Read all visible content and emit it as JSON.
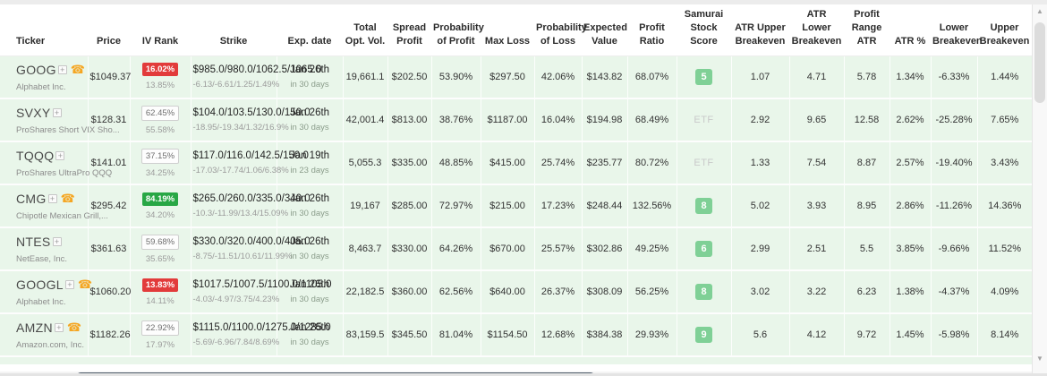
{
  "columns": [
    {
      "key": "ticker",
      "label": "Ticker"
    },
    {
      "key": "price",
      "label": "Price"
    },
    {
      "key": "iv-rank",
      "label": "IV Rank"
    },
    {
      "key": "strike",
      "label": "Strike"
    },
    {
      "key": "exp-date",
      "label": "Exp. date"
    },
    {
      "key": "total-opt-vol",
      "label": "Total Opt. Vol."
    },
    {
      "key": "spread-profit",
      "label": "Spread Profit"
    },
    {
      "key": "prob-profit",
      "label": "Probability of Profit"
    },
    {
      "key": "max-loss",
      "label": "Max Loss"
    },
    {
      "key": "prob-loss",
      "label": "Probability of Loss"
    },
    {
      "key": "expected-value",
      "label": "Expected Value"
    },
    {
      "key": "profit-ratio",
      "label": "Profit Ratio"
    },
    {
      "key": "samurai-stock-score",
      "label": "Samurai Stock Score"
    },
    {
      "key": "atr-upper-breakeven",
      "label": "ATR Upper Breakeven"
    },
    {
      "key": "atr-lower-breakeven",
      "label": "ATR Lower Breakeven"
    },
    {
      "key": "profit-range-atr",
      "label": "Profit Range ATR"
    },
    {
      "key": "atr-pct",
      "label": "ATR %"
    },
    {
      "key": "lower-breakeven",
      "label": "Lower Breakeven"
    },
    {
      "key": "upper-breakeven",
      "label": "Upper Breakeven"
    }
  ],
  "icons": {
    "phone": "☎",
    "expand": "+",
    "scroll_up": "▲",
    "scroll_down": "▼"
  },
  "colors": {
    "iv_red": "#e23b3b",
    "iv_green": "#28a745",
    "score_green": "#7fd096",
    "row_bg": "#e9f6ea",
    "h_thumb": "#4f5d6a"
  },
  "rows": [
    {
      "ticker": "GOOG",
      "company": "Alphabet Inc.",
      "has_phone": true,
      "price": "$1049.37",
      "iv_rank": "16.02%",
      "iv_rank_style": "red",
      "iv_rank_sub": "13.85%",
      "strike": "$985.0/980.0/1062.5/1065.0",
      "strike_sub": "-6.13/-6.61/1.25/1.49%",
      "exp_date": "Jan 26th",
      "exp_sub": "in 30 days",
      "total_opt_vol": "19,661.1",
      "spread_profit": "$202.50",
      "prob_profit": "53.90%",
      "max_loss": "$297.50",
      "prob_loss": "42.06%",
      "expected_value": "$143.82",
      "profit_ratio": "68.07%",
      "score": "5",
      "score_type": "badge",
      "atr_upper": "1.07",
      "atr_lower": "4.71",
      "profit_range_atr": "5.78",
      "atr_pct": "1.34%",
      "lower_be": "-6.33%",
      "upper_be": "1.44%"
    },
    {
      "ticker": "SVXY",
      "company": "ProShares Short VIX Sho...",
      "has_phone": false,
      "price": "$128.31",
      "iv_rank": "62.45%",
      "iv_rank_style": "outline",
      "iv_rank_sub": "55.58%",
      "strike": "$104.0/103.5/130.0/150.0",
      "strike_sub": "-18.95/-19.34/1.32/16.9%",
      "exp_date": "Jan 26th",
      "exp_sub": "in 30 days",
      "total_opt_vol": "42,001.4",
      "spread_profit": "$813.00",
      "prob_profit": "38.76%",
      "max_loss": "$1187.00",
      "prob_loss": "16.04%",
      "expected_value": "$194.98",
      "profit_ratio": "68.49%",
      "score": "ETF",
      "score_type": "etf",
      "atr_upper": "2.92",
      "atr_lower": "9.65",
      "profit_range_atr": "12.58",
      "atr_pct": "2.62%",
      "lower_be": "-25.28%",
      "upper_be": "7.65%"
    },
    {
      "ticker": "TQQQ",
      "company": "ProShares UltraPro QQQ",
      "has_phone": false,
      "price": "$141.01",
      "iv_rank": "37.15%",
      "iv_rank_style": "outline",
      "iv_rank_sub": "34.25%",
      "strike": "$117.0/116.0/142.5/150.0",
      "strike_sub": "-17.03/-17.74/1.06/6.38%",
      "exp_date": "Jan 19th",
      "exp_sub": "in 23 days",
      "total_opt_vol": "5,055.3",
      "spread_profit": "$335.00",
      "prob_profit": "48.85%",
      "max_loss": "$415.00",
      "prob_loss": "25.74%",
      "expected_value": "$235.77",
      "profit_ratio": "80.72%",
      "score": "ETF",
      "score_type": "etf",
      "atr_upper": "1.33",
      "atr_lower": "7.54",
      "profit_range_atr": "8.87",
      "atr_pct": "2.57%",
      "lower_be": "-19.40%",
      "upper_be": "3.43%"
    },
    {
      "ticker": "CMG",
      "company": "Chipotle Mexican Grill,...",
      "has_phone": true,
      "price": "$295.42",
      "iv_rank": "84.19%",
      "iv_rank_style": "green",
      "iv_rank_sub": "34.20%",
      "strike": "$265.0/260.0/335.0/340.0",
      "strike_sub": "-10.3/-11.99/13.4/15.09%",
      "exp_date": "Jan 26th",
      "exp_sub": "in 30 days",
      "total_opt_vol": "19,167",
      "spread_profit": "$285.00",
      "prob_profit": "72.97%",
      "max_loss": "$215.00",
      "prob_loss": "17.23%",
      "expected_value": "$248.44",
      "profit_ratio": "132.56%",
      "score": "8",
      "score_type": "badge",
      "atr_upper": "5.02",
      "atr_lower": "3.93",
      "profit_range_atr": "8.95",
      "atr_pct": "2.86%",
      "lower_be": "-11.26%",
      "upper_be": "14.36%"
    },
    {
      "ticker": "NTES",
      "company": "NetEase, Inc.",
      "has_phone": false,
      "price": "$361.63",
      "iv_rank": "59.68%",
      "iv_rank_style": "outline",
      "iv_rank_sub": "35.65%",
      "strike": "$330.0/320.0/400.0/405.0",
      "strike_sub": "-8.75/-11.51/10.61/11.99%",
      "exp_date": "Jan 26th",
      "exp_sub": "in 30 days",
      "total_opt_vol": "8,463.7",
      "spread_profit": "$330.00",
      "prob_profit": "64.26%",
      "max_loss": "$670.00",
      "prob_loss": "25.57%",
      "expected_value": "$302.86",
      "profit_ratio": "49.25%",
      "score": "6",
      "score_type": "badge",
      "atr_upper": "2.99",
      "atr_lower": "2.51",
      "profit_range_atr": "5.5",
      "atr_pct": "3.85%",
      "lower_be": "-9.66%",
      "upper_be": "11.52%"
    },
    {
      "ticker": "GOOGL",
      "company": "Alphabet Inc.",
      "has_phone": true,
      "price": "$1060.20",
      "iv_rank": "13.83%",
      "iv_rank_style": "red",
      "iv_rank_sub": "14.11%",
      "strike": "$1017.5/1007.5/1100.0/1105.0",
      "strike_sub": "-4.03/-4.97/3.75/4.23%",
      "exp_date": "Jan 26th",
      "exp_sub": "in 30 days",
      "total_opt_vol": "22,182.5",
      "spread_profit": "$360.00",
      "prob_profit": "62.56%",
      "max_loss": "$640.00",
      "prob_loss": "26.37%",
      "expected_value": "$308.09",
      "profit_ratio": "56.25%",
      "score": "8",
      "score_type": "badge",
      "atr_upper": "3.02",
      "atr_lower": "3.22",
      "profit_range_atr": "6.23",
      "atr_pct": "1.38%",
      "lower_be": "-4.37%",
      "upper_be": "4.09%"
    },
    {
      "ticker": "AMZN",
      "company": "Amazon.com, Inc.",
      "has_phone": true,
      "price": "$1182.26",
      "iv_rank": "22.92%",
      "iv_rank_style": "outline",
      "iv_rank_sub": "17.97%",
      "strike": "$1115.0/1100.0/1275.0/1285.0",
      "strike_sub": "-5.69/-6.96/7.84/8.69%",
      "exp_date": "Jan 26th",
      "exp_sub": "in 30 days",
      "total_opt_vol": "83,159.5",
      "spread_profit": "$345.50",
      "prob_profit": "81.04%",
      "max_loss": "$1154.50",
      "prob_loss": "12.68%",
      "expected_value": "$384.38",
      "profit_ratio": "29.93%",
      "score": "9",
      "score_type": "badge",
      "atr_upper": "5.6",
      "atr_lower": "4.12",
      "profit_range_atr": "9.72",
      "atr_pct": "1.45%",
      "lower_be": "-5.98%",
      "upper_be": "8.14%"
    }
  ]
}
